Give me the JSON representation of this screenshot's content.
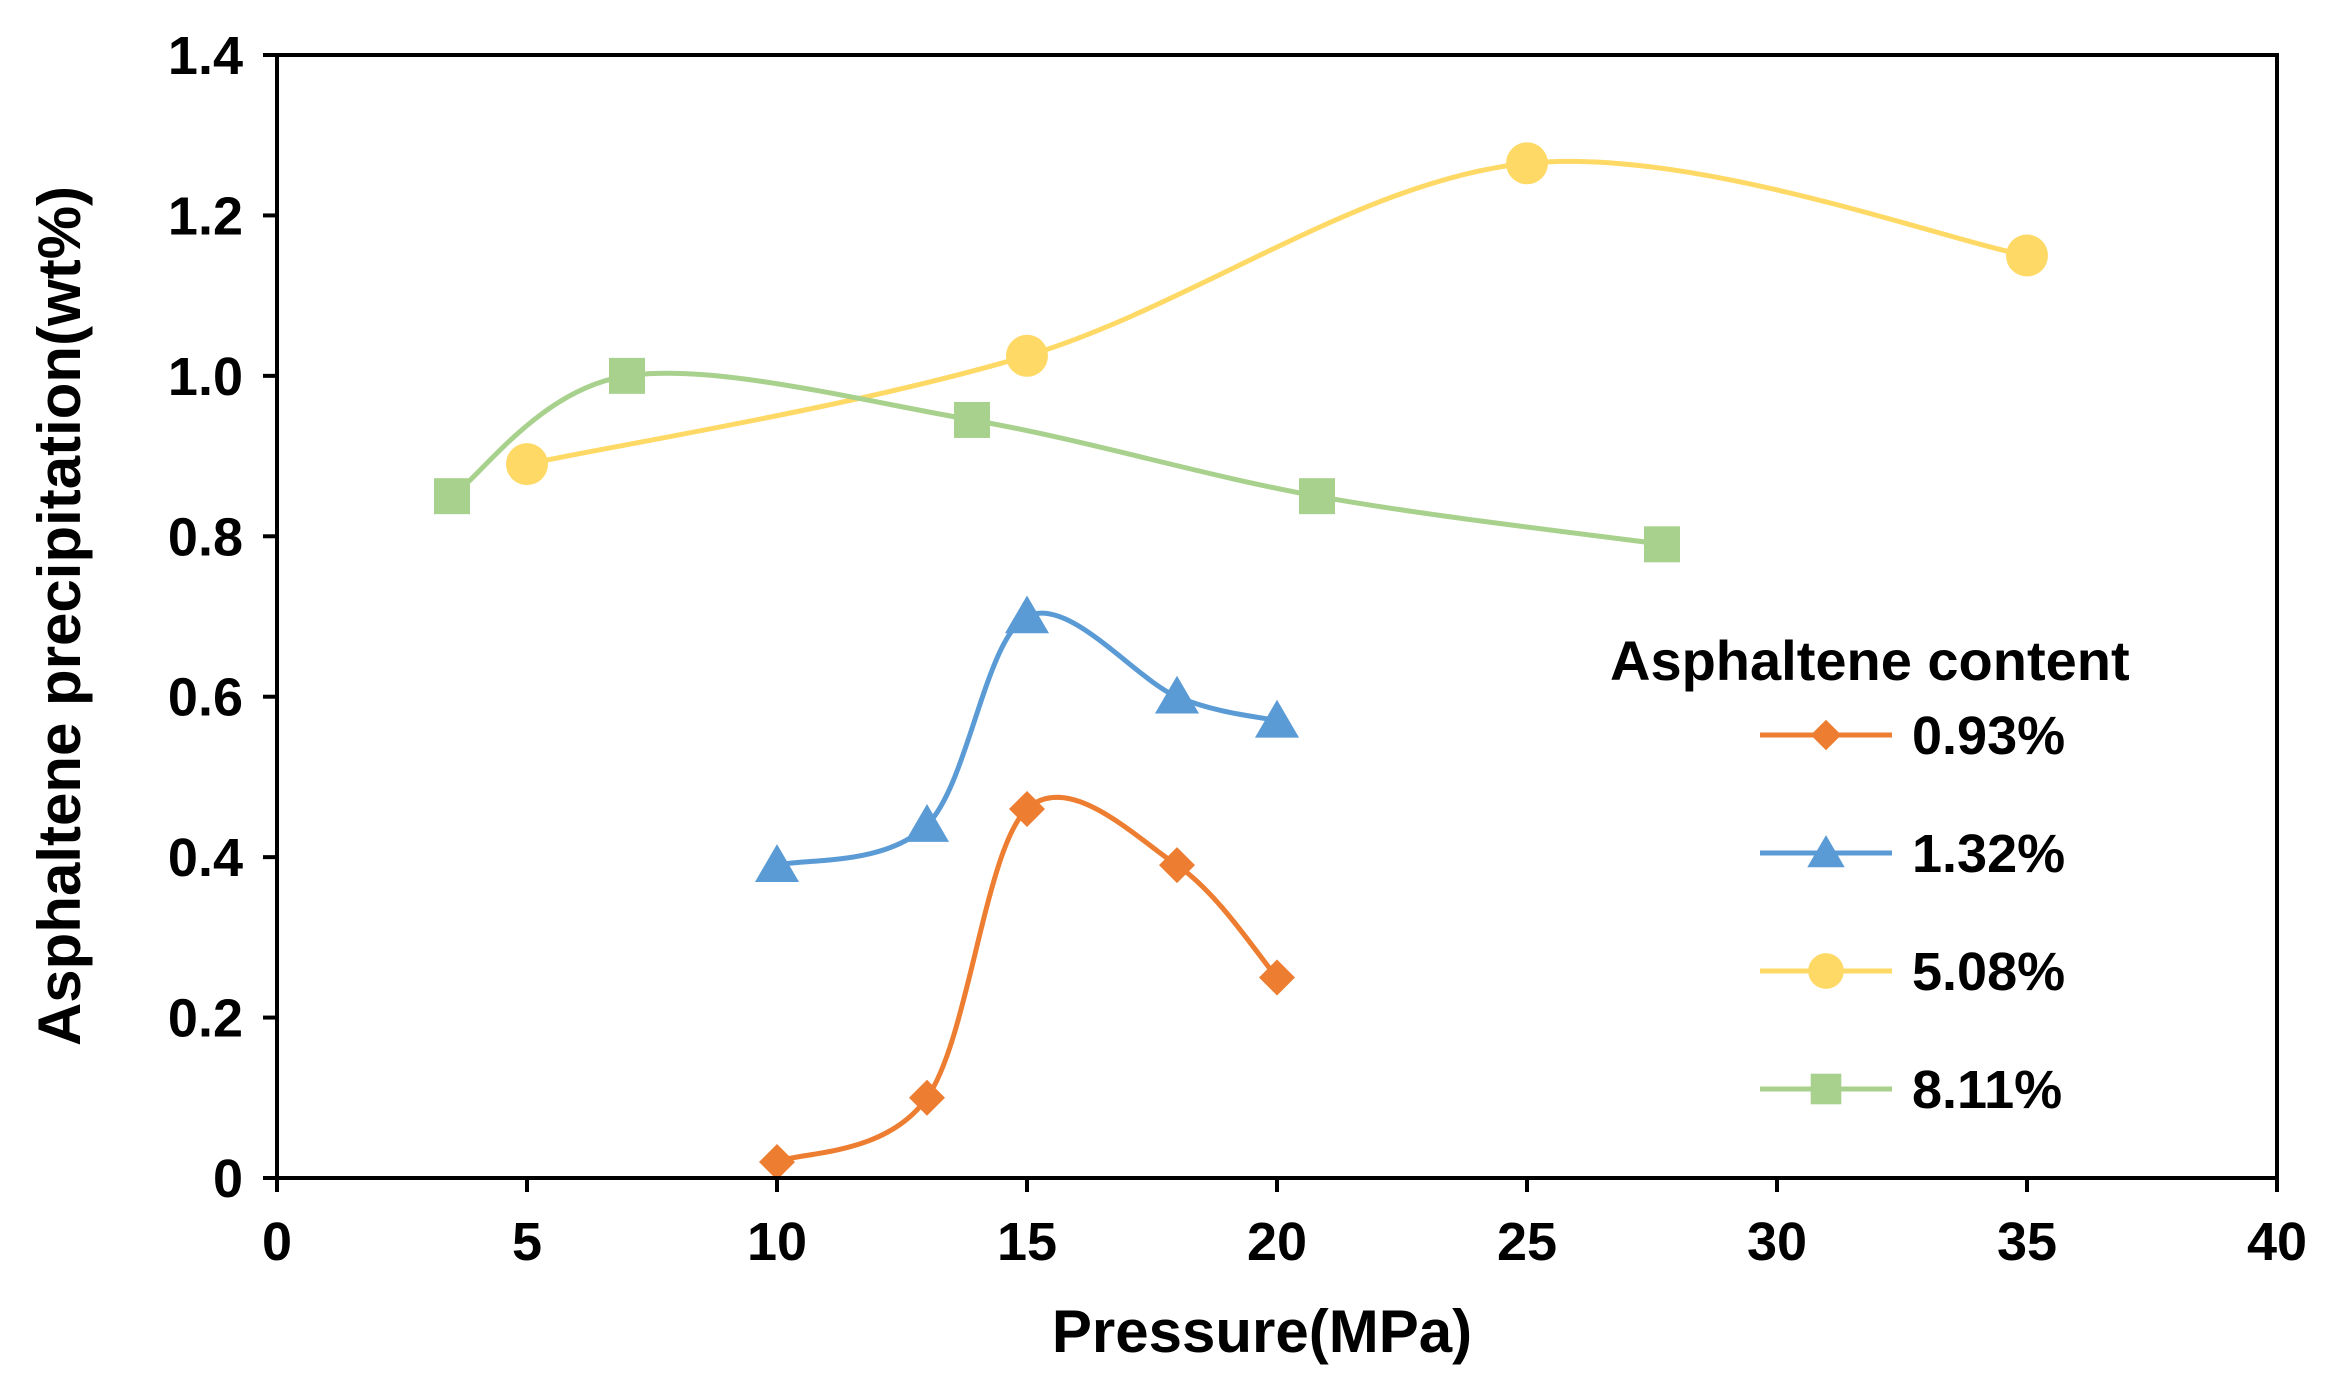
{
  "chart_data": {
    "type": "line",
    "title": "",
    "xlabel": "Pressure(MPa)",
    "ylabel": "Asphaltene precipitation(wt%)",
    "xlim": [
      0,
      40
    ],
    "ylim": [
      0,
      1.4
    ],
    "x_ticks": [
      0,
      5,
      10,
      15,
      20,
      25,
      30,
      35,
      40
    ],
    "y_ticks": [
      0,
      0.2,
      0.4,
      0.6,
      0.8,
      1.0,
      1.2,
      1.4
    ],
    "x_tick_labels": [
      "0",
      "5",
      "10",
      "15",
      "20",
      "25",
      "30",
      "35",
      "40"
    ],
    "y_tick_labels": [
      "0",
      "0.2",
      "0.4",
      "0.6",
      "0.8",
      "1.0",
      "1.2",
      "1.4"
    ],
    "grid": false,
    "smooth": true,
    "legend": {
      "title": "Asphaltene content",
      "position": "right"
    },
    "series": [
      {
        "name": "0.93%",
        "color": "#ED7D31",
        "marker": "diamond",
        "x": [
          10,
          13,
          15,
          18,
          20
        ],
        "y": [
          0.02,
          0.1,
          0.46,
          0.39,
          0.25
        ]
      },
      {
        "name": "1.32%",
        "color": "#5B9BD5",
        "marker": "triangle",
        "x": [
          10,
          13,
          15,
          18,
          20
        ],
        "y": [
          0.39,
          0.44,
          0.7,
          0.6,
          0.57
        ]
      },
      {
        "name": "5.08%",
        "color": "#FFD966",
        "marker": "circle",
        "x": [
          5,
          15,
          25,
          35
        ],
        "y": [
          0.89,
          1.025,
          1.265,
          1.15
        ]
      },
      {
        "name": "8.11%",
        "color": "#A9D18E",
        "marker": "square",
        "x": [
          3.5,
          7,
          13.9,
          20.8,
          27.7
        ],
        "y": [
          0.85,
          1.0,
          0.945,
          0.85,
          0.79
        ]
      }
    ]
  }
}
